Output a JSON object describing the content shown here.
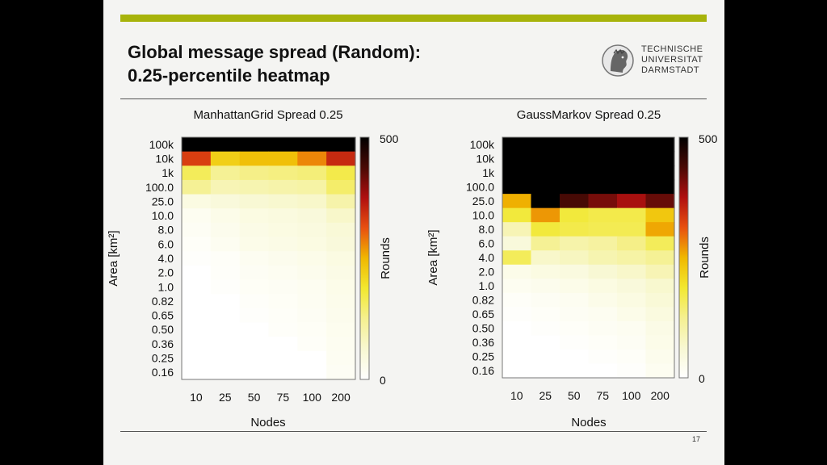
{
  "slide": {
    "title_line1": "Global message spread (Random):",
    "title_line2": "0.25-percentile heatmap",
    "logo_lines": [
      "TECHNISCHE",
      "UNIVERSITAT",
      "DARMSTADT"
    ],
    "logo_icon": "university-seal-icon",
    "page_number": "17",
    "accent_color": "#a7b30b"
  },
  "chart_data": [
    {
      "type": "heatmap",
      "title": "ManhattanGrid Spread 0.25",
      "xlabel": "Nodes",
      "ylabel": "Area [km²]",
      "colorbar_label": "Rounds",
      "colorbar_ticks": [
        "0",
        "500"
      ],
      "clim": [
        0,
        500
      ],
      "colormap": [
        "#ffffff",
        "#f8f8d2",
        "#f5f090",
        "#f2e830",
        "#f0b800",
        "#e85010",
        "#b01010",
        "#4a0a05",
        "#000000"
      ],
      "x": [
        "10",
        "25",
        "50",
        "75",
        "100",
        "200"
      ],
      "y": [
        "100k",
        "10k",
        "1k",
        "100.0",
        "25.0",
        "10.0",
        "8.0",
        "6.0",
        "4.0",
        "2.0",
        "1.0",
        "0.82",
        "0.65",
        "0.50",
        "0.36",
        "0.25",
        "0.16"
      ],
      "values": [
        [
          500,
          500,
          500,
          500,
          500,
          500
        ],
        [
          330,
          220,
          240,
          240,
          280,
          350
        ],
        [
          160,
          120,
          130,
          135,
          140,
          170
        ],
        [
          120,
          90,
          95,
          100,
          105,
          150
        ],
        [
          40,
          50,
          60,
          65,
          70,
          100
        ],
        [
          20,
          30,
          40,
          45,
          50,
          70
        ],
        [
          15,
          25,
          35,
          40,
          45,
          55
        ],
        [
          10,
          20,
          30,
          35,
          40,
          50
        ],
        [
          5,
          10,
          20,
          25,
          30,
          40
        ],
        [
          0,
          8,
          15,
          20,
          25,
          35
        ],
        [
          0,
          5,
          12,
          15,
          20,
          30
        ],
        [
          0,
          0,
          8,
          12,
          18,
          28
        ],
        [
          0,
          0,
          5,
          10,
          15,
          25
        ],
        [
          0,
          0,
          0,
          8,
          12,
          22
        ],
        [
          0,
          0,
          0,
          0,
          10,
          20
        ],
        [
          0,
          0,
          0,
          0,
          0,
          18
        ],
        [
          0,
          0,
          0,
          0,
          0,
          15
        ]
      ]
    },
    {
      "type": "heatmap",
      "title": "GaussMarkov Spread 0.25",
      "xlabel": "Nodes",
      "ylabel": "Area [km²]",
      "colorbar_label": "Rounds",
      "colorbar_ticks": [
        "0",
        "500"
      ],
      "clim": [
        0,
        500
      ],
      "colormap": [
        "#ffffff",
        "#f8f8d2",
        "#f5f090",
        "#f2e830",
        "#f0b800",
        "#e85010",
        "#b01010",
        "#4a0a05",
        "#000000"
      ],
      "x": [
        "10",
        "25",
        "50",
        "75",
        "100",
        "200"
      ],
      "y": [
        "100k",
        "10k",
        "1k",
        "100.0",
        "25.0",
        "10.0",
        "8.0",
        "6.0",
        "4.0",
        "2.0",
        "1.0",
        "0.82",
        "0.65",
        "0.50",
        "0.36",
        "0.25",
        "0.16"
      ],
      "values": [
        [
          500,
          500,
          500,
          500,
          500,
          500
        ],
        [
          500,
          500,
          500,
          500,
          500,
          500
        ],
        [
          500,
          500,
          500,
          500,
          500,
          500
        ],
        [
          500,
          500,
          500,
          500,
          500,
          500
        ],
        [
          255,
          500,
          440,
          410,
          380,
          420
        ],
        [
          180,
          270,
          180,
          170,
          170,
          230
        ],
        [
          90,
          180,
          170,
          165,
          165,
          260
        ],
        [
          50,
          120,
          100,
          110,
          130,
          160
        ],
        [
          160,
          70,
          80,
          95,
          105,
          120
        ],
        [
          30,
          40,
          45,
          60,
          70,
          90
        ],
        [
          20,
          25,
          30,
          40,
          50,
          65
        ],
        [
          10,
          15,
          20,
          30,
          40,
          55
        ],
        [
          5,
          10,
          15,
          20,
          30,
          45
        ],
        [
          0,
          5,
          10,
          15,
          20,
          35
        ],
        [
          0,
          0,
          5,
          10,
          15,
          30
        ],
        [
          0,
          0,
          0,
          5,
          10,
          25
        ],
        [
          0,
          0,
          0,
          0,
          5,
          20
        ]
      ]
    }
  ]
}
